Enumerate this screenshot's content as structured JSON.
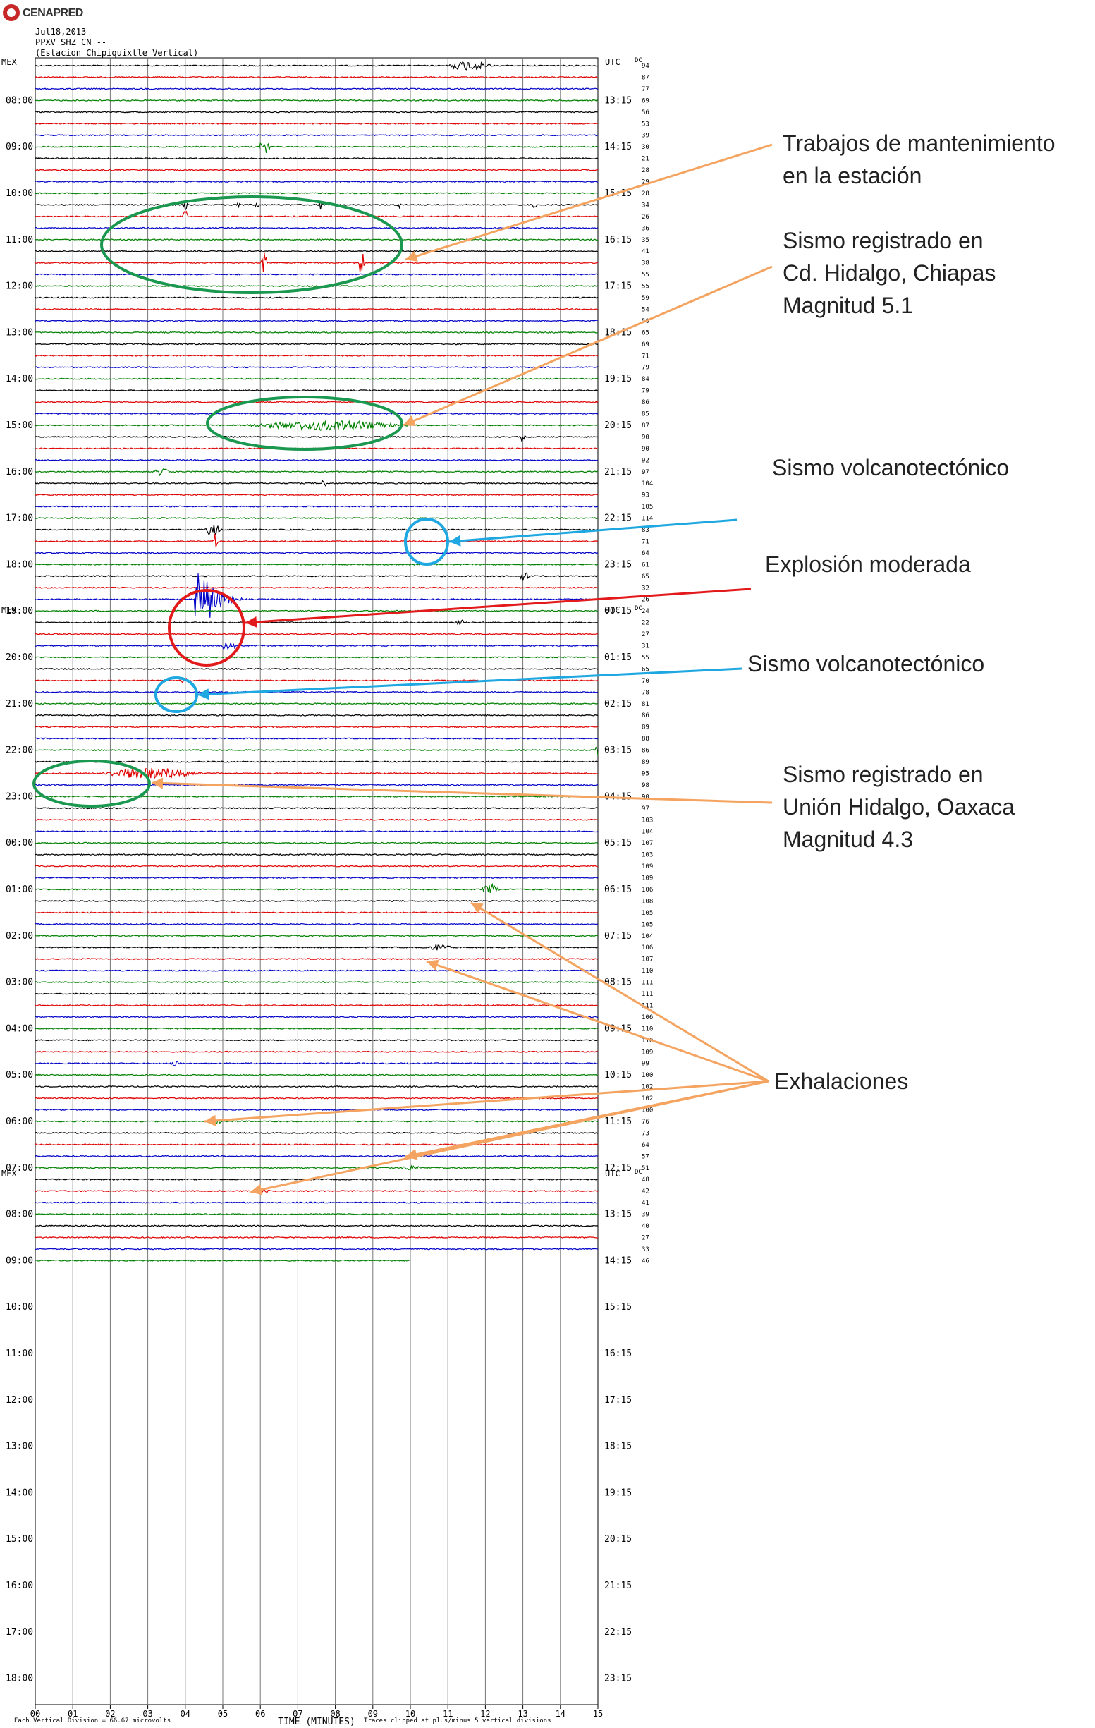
{
  "logo": {
    "text": "CENAPRED"
  },
  "header": {
    "date": "Jul18,2013",
    "channel": "PPXV SHZ CN --",
    "station": "(Estacion Chipiquixtle Vertical)"
  },
  "chart_data": {
    "type": "helicorder",
    "left_axis_label": "MEX",
    "right_axis_label": "UTC",
    "right_col_label": "DC",
    "hour_labels_left": [
      "08:00",
      "09:00",
      "10:00",
      "11:00",
      "12:00",
      "13:00",
      "14:00",
      "15:00",
      "16:00",
      "17:00",
      "18:00",
      "19:00",
      "20:00",
      "21:00",
      "22:00",
      "23:00",
      "00:00",
      "01:00",
      "02:00",
      "03:00",
      "04:00",
      "05:00",
      "06:00",
      "07:00",
      "08:00",
      "09:00",
      "10:00",
      "11:00",
      "12:00",
      "13:00",
      "14:00",
      "15:00",
      "16:00",
      "17:00",
      "18:00"
    ],
    "hour_labels_right": [
      "13:15",
      "14:15",
      "15:15",
      "16:15",
      "17:15",
      "18:15",
      "19:15",
      "20:15",
      "21:15",
      "22:15",
      "23:15",
      "00:15",
      "01:15",
      "02:15",
      "03:15",
      "04:15",
      "05:15",
      "06:15",
      "07:15",
      "08:15",
      "09:15",
      "10:15",
      "11:15",
      "12:15",
      "13:15",
      "14:15",
      "15:15",
      "16:15",
      "17:15",
      "18:15",
      "19:15",
      "20:15",
      "21:15",
      "22:15",
      "23:15"
    ],
    "dc_values": [
      94,
      87,
      77,
      69,
      56,
      53,
      39,
      30,
      21,
      28,
      29,
      28,
      34,
      26,
      36,
      35,
      41,
      38,
      55,
      55,
      59,
      54,
      50,
      65,
      69,
      71,
      79,
      84,
      79,
      86,
      85,
      87,
      90,
      90,
      92,
      97,
      104,
      93,
      105,
      114,
      83,
      71,
      64,
      61,
      65,
      32,
      26,
      24,
      22,
      27,
      31,
      55,
      65,
      70,
      78,
      81,
      86,
      89,
      88,
      86,
      89,
      95,
      98,
      90,
      97,
      103,
      104,
      107,
      103,
      109,
      109,
      106,
      108,
      105,
      105,
      104,
      106,
      107,
      110,
      111,
      111,
      111,
      106,
      110,
      110,
      109,
      99,
      100,
      102,
      102,
      100,
      76,
      73,
      64,
      57,
      51,
      48,
      42,
      41,
      39,
      40,
      27,
      33,
      46
    ],
    "x_ticks": [
      "00",
      "01",
      "02",
      "03",
      "04",
      "05",
      "06",
      "07",
      "08",
      "09",
      "10",
      "11",
      "12",
      "13",
      "14",
      "15"
    ],
    "xlabel": "TIME (MINUTES)",
    "footer_left": "Each Vertical Division = 66.67 microvolts",
    "footer_right": "Traces clipped at plus/minus 5 vertical divisions",
    "trace_colors": [
      "#000000",
      "#e00000",
      "#0000c8",
      "#008000"
    ],
    "events": [
      {
        "line": 0,
        "minute": 11.0,
        "amp": 7,
        "dur": 1.2,
        "type": "wave"
      },
      {
        "line": 7,
        "minute": 6.0,
        "amp": 10,
        "dur": 0.3,
        "type": "wave"
      },
      {
        "line": 12,
        "minute": 4.0,
        "amp": 10,
        "dur": 0.2,
        "type": "spike"
      },
      {
        "line": 12,
        "minute": 5.4,
        "amp": 7,
        "dur": 0.2,
        "type": "spike"
      },
      {
        "line": 12,
        "minute": 5.9,
        "amp": 6,
        "dur": 0.2,
        "type": "spike"
      },
      {
        "line": 12,
        "minute": 7.6,
        "amp": 8,
        "dur": 0.2,
        "type": "spike"
      },
      {
        "line": 12,
        "minute": 9.7,
        "amp": 12,
        "dur": 0.2,
        "type": "spike"
      },
      {
        "line": 12,
        "minute": 13.3,
        "amp": 8,
        "dur": 0.3,
        "type": "spike"
      },
      {
        "line": 13,
        "minute": 4.0,
        "amp": 18,
        "dur": 0.2,
        "type": "spike"
      },
      {
        "line": 17,
        "minute": 6.1,
        "amp": 28,
        "dur": 0.2,
        "type": "spike"
      },
      {
        "line": 17,
        "minute": 8.7,
        "amp": 36,
        "dur": 0.2,
        "type": "spike"
      },
      {
        "line": 31,
        "minute": 5.5,
        "amp": 7,
        "dur": 4.5,
        "type": "wave"
      },
      {
        "line": 32,
        "minute": 13.0,
        "amp": 10,
        "dur": 0.2,
        "type": "spike"
      },
      {
        "line": 35,
        "minute": 3.2,
        "amp": 6,
        "dur": 0.4,
        "type": "wave"
      },
      {
        "line": 36,
        "minute": 7.7,
        "amp": 8,
        "dur": 0.3,
        "type": "spike"
      },
      {
        "line": 40,
        "minute": 4.5,
        "amp": 9,
        "dur": 0.5,
        "type": "wave"
      },
      {
        "line": 41,
        "minute": 4.8,
        "amp": 12,
        "dur": 0.2,
        "type": "spike"
      },
      {
        "line": 44,
        "minute": 12.9,
        "amp": 7,
        "dur": 0.3,
        "type": "wave"
      },
      {
        "line": 46,
        "minute": 4.3,
        "amp": 40,
        "dur": 1.2,
        "type": "explosion"
      },
      {
        "line": 48,
        "minute": 11.2,
        "amp": 6,
        "dur": 0.3,
        "type": "wave"
      },
      {
        "line": 50,
        "minute": 4.9,
        "amp": 5,
        "dur": 0.5,
        "type": "wave"
      },
      {
        "line": 53,
        "minute": 3.8,
        "amp": 4,
        "dur": 0.4,
        "type": "wave"
      },
      {
        "line": 59,
        "minute": 15.0,
        "amp": 10,
        "dur": 0.15,
        "type": "spike"
      },
      {
        "line": 61,
        "minute": 1.6,
        "amp": 8,
        "dur": 3.0,
        "type": "wave"
      },
      {
        "line": 71,
        "minute": 11.9,
        "amp": 7,
        "dur": 0.5,
        "type": "wave"
      },
      {
        "line": 76,
        "minute": 10.5,
        "amp": 5,
        "dur": 0.6,
        "type": "wave"
      },
      {
        "line": 86,
        "minute": 3.6,
        "amp": 4,
        "dur": 0.3,
        "type": "wave"
      },
      {
        "line": 91,
        "minute": 4.6,
        "amp": 5,
        "dur": 0.4,
        "type": "wave"
      },
      {
        "line": 95,
        "minute": 9.8,
        "amp": 4,
        "dur": 0.5,
        "type": "wave"
      },
      {
        "line": 97,
        "minute": 5.9,
        "amp": 6,
        "dur": 0.4,
        "type": "wave"
      },
      {
        "line": 1,
        "minute": 15.0,
        "amp": 5,
        "dur": 0.3,
        "type": "wave"
      }
    ]
  },
  "annotations": {
    "mantenimiento": [
      "Trabajos de mantenimiento",
      "en la estación"
    ],
    "chiapas": [
      "Sismo registrado en",
      "Cd. Hidalgo, Chiapas",
      "Magnitud 5.1"
    ],
    "vt1": [
      "Sismo volcanotectónico"
    ],
    "explosion": [
      "Explosión moderada"
    ],
    "vt2": [
      "Sismo volcanotectónico"
    ],
    "oaxaca": [
      "Sismo registrado en",
      "Unión Hidalgo, Oaxaca",
      "Magnitud 4.3"
    ],
    "exhalaciones": [
      "Exhalaciones"
    ]
  },
  "colors": {
    "orange": "#f4a460",
    "green": "#1a9850",
    "cyan": "#1ea7e0",
    "red": "#e31a1c"
  }
}
